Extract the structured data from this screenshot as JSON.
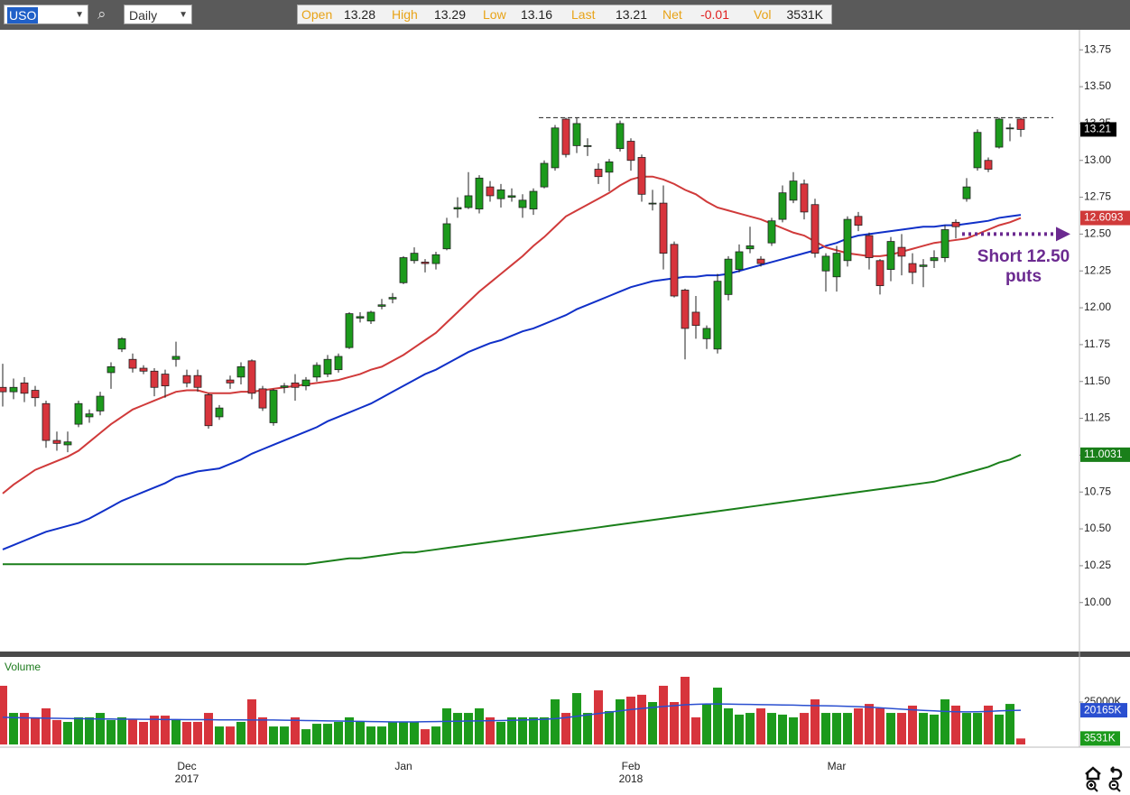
{
  "toolbar": {
    "symbol": "USO",
    "interval": "Daily",
    "open_label": "Open",
    "high_label": "High",
    "low_label": "Low",
    "last_label": "Last",
    "net_label": "Net",
    "net": "-0.01",
    "vol_label": "Vol"
  },
  "chart_data": {
    "type": "candlestick",
    "categories": [
      null,
      null,
      null,
      null,
      null,
      null,
      null,
      null,
      null,
      null,
      null,
      null,
      null,
      null,
      null,
      null,
      null,
      "Dec",
      null,
      null,
      null,
      null,
      null,
      null,
      null,
      null,
      null,
      null,
      null,
      null,
      null,
      null,
      null,
      null,
      null,
      null,
      null,
      "Jan",
      null,
      null,
      null,
      null,
      null,
      null,
      null,
      null,
      null,
      null,
      null,
      null,
      null,
      null,
      null,
      null,
      null,
      null,
      null,
      null,
      "Feb",
      null,
      null,
      null,
      null,
      null,
      null,
      null,
      null,
      null,
      null,
      null,
      null,
      null,
      null,
      null,
      null,
      null,
      null,
      "Mar",
      null,
      null,
      null,
      null,
      null,
      null,
      null,
      null,
      null,
      null,
      null,
      null,
      null,
      null,
      null,
      null,
      null
    ],
    "year_labels": [
      null,
      null,
      null,
      null,
      null,
      null,
      null,
      null,
      null,
      null,
      null,
      null,
      null,
      null,
      null,
      null,
      null,
      "2017",
      null,
      null,
      null,
      null,
      null,
      null,
      null,
      null,
      null,
      null,
      null,
      null,
      null,
      null,
      null,
      null,
      null,
      null,
      null,
      null,
      null,
      null,
      null,
      null,
      null,
      null,
      null,
      null,
      null,
      null,
      null,
      null,
      null,
      null,
      null,
      null,
      null,
      null,
      null,
      null,
      "2018",
      null,
      null,
      null,
      null,
      null,
      null,
      null,
      null,
      null,
      null,
      null,
      null,
      null,
      null,
      null,
      null,
      null,
      null,
      null,
      null,
      null,
      null,
      null,
      null,
      null,
      null,
      null,
      null,
      null,
      null,
      null,
      null,
      null,
      null,
      null,
      null
    ],
    "open": [
      11.46,
      11.43,
      11.49,
      11.44,
      11.35,
      11.1,
      11.07,
      11.21,
      11.26,
      11.3,
      11.56,
      11.72,
      11.65,
      11.59,
      11.57,
      11.55,
      11.65,
      11.54,
      11.54,
      11.41,
      11.26,
      11.51,
      11.53,
      11.64,
      11.45,
      11.22,
      11.46,
      11.49,
      11.47,
      11.53,
      11.55,
      11.58,
      11.73,
      11.93,
      11.91,
      12.01,
      12.06,
      12.17,
      12.32,
      12.31,
      12.3,
      12.4,
      12.67,
      12.68,
      12.67,
      12.82,
      12.74,
      12.75,
      12.68,
      12.67,
      12.82,
      12.95,
      13.28,
      13.1,
      13.1,
      12.94,
      12.92,
      13.08,
      13.13,
      13.02,
      12.71,
      12.71,
      12.43,
      12.12,
      11.97,
      11.79,
      11.72,
      12.09,
      12.26,
      12.4,
      12.33,
      12.44,
      12.6,
      12.73,
      12.84,
      12.7,
      12.25,
      12.21,
      12.32,
      12.62,
      12.49,
      12.32,
      12.26,
      12.41,
      12.3,
      12.28,
      12.32,
      12.34,
      12.58,
      12.74,
      12.95,
      13.0,
      13.09,
      13.22,
      13.28
    ],
    "high": [
      11.62,
      11.52,
      11.53,
      11.47,
      11.37,
      11.16,
      11.16,
      11.37,
      11.31,
      11.43,
      11.63,
      11.8,
      11.69,
      11.61,
      11.59,
      11.58,
      11.77,
      11.58,
      11.58,
      11.42,
      11.34,
      11.54,
      11.63,
      11.65,
      11.47,
      11.45,
      11.49,
      11.55,
      11.53,
      11.63,
      11.68,
      11.69,
      11.97,
      11.97,
      11.98,
      12.06,
      12.1,
      12.35,
      12.41,
      12.33,
      12.38,
      12.61,
      12.75,
      12.92,
      12.9,
      12.86,
      12.84,
      12.81,
      12.77,
      12.81,
      13.0,
      13.24,
      13.29,
      13.29,
      13.15,
      12.98,
      13.01,
      13.27,
      13.15,
      13.04,
      12.8,
      12.83,
      12.45,
      12.13,
      12.08,
      11.88,
      12.23,
      12.35,
      12.43,
      12.55,
      12.35,
      12.61,
      12.83,
      12.92,
      12.87,
      12.74,
      12.37,
      12.42,
      12.62,
      12.65,
      12.51,
      12.33,
      12.48,
      12.5,
      12.37,
      12.33,
      12.39,
      12.56,
      12.6,
      12.88,
      13.21,
      13.02,
      13.29,
      13.25,
      13.29
    ],
    "low": [
      11.33,
      11.38,
      11.36,
      11.33,
      11.05,
      11.03,
      11.02,
      11.19,
      11.22,
      11.27,
      11.45,
      11.7,
      11.56,
      11.55,
      11.4,
      11.39,
      11.6,
      11.46,
      11.43,
      11.18,
      11.24,
      11.45,
      11.48,
      11.38,
      11.3,
      11.2,
      11.42,
      11.37,
      11.44,
      11.5,
      11.53,
      11.56,
      11.72,
      11.9,
      11.89,
      11.99,
      12.03,
      12.16,
      12.3,
      12.24,
      12.26,
      12.39,
      12.61,
      12.67,
      12.64,
      12.72,
      12.68,
      12.72,
      12.61,
      12.63,
      12.81,
      12.93,
      13.02,
      13.05,
      13.03,
      12.84,
      12.79,
      13.06,
      12.93,
      12.72,
      12.66,
      12.26,
      12.07,
      11.65,
      11.79,
      11.72,
      11.69,
      12.05,
      12.24,
      12.37,
      12.28,
      12.42,
      12.58,
      12.71,
      12.6,
      12.34,
      12.11,
      12.11,
      12.28,
      12.52,
      12.26,
      12.09,
      12.18,
      12.22,
      12.16,
      12.14,
      12.27,
      12.31,
      12.47,
      12.72,
      12.93,
      12.92,
      13.08,
      13.13,
      13.16
    ],
    "close": [
      11.43,
      11.46,
      11.42,
      11.39,
      11.1,
      11.08,
      11.09,
      11.35,
      11.28,
      11.4,
      11.6,
      11.79,
      11.59,
      11.57,
      11.46,
      11.47,
      11.67,
      11.49,
      11.46,
      11.2,
      11.32,
      11.49,
      11.6,
      11.42,
      11.32,
      11.44,
      11.47,
      11.46,
      11.51,
      11.61,
      11.65,
      11.67,
      11.96,
      11.94,
      11.97,
      12.02,
      12.07,
      12.34,
      12.37,
      12.3,
      12.36,
      12.57,
      12.68,
      12.76,
      12.88,
      12.76,
      12.8,
      12.76,
      12.73,
      12.79,
      12.98,
      13.22,
      13.04,
      13.25,
      13.1,
      12.89,
      12.99,
      13.25,
      13.0,
      12.77,
      12.71,
      12.37,
      12.08,
      11.86,
      11.88,
      11.86,
      12.18,
      12.33,
      12.38,
      12.42,
      12.3,
      12.59,
      12.78,
      12.86,
      12.65,
      12.37,
      12.35,
      12.37,
      12.6,
      12.56,
      12.34,
      12.15,
      12.45,
      12.35,
      12.24,
      12.29,
      12.34,
      12.53,
      12.55,
      12.82,
      13.19,
      12.94,
      13.28,
      13.22,
      13.21
    ],
    "up_color": "#1c9a1c",
    "down_color": "#d7343c",
    "ylim": [
      9.68,
      13.88
    ],
    "yticks": [
      {
        "value": 10,
        "label": "10.00"
      },
      10.25,
      {
        "value": 10.5,
        "label": "10.50"
      },
      10.75,
      {
        "value": 11,
        "label": "11.00"
      },
      11.25,
      {
        "value": 11.5,
        "label": "11.50"
      },
      11.75,
      {
        "value": 12,
        "label": "12.00"
      },
      12.25,
      {
        "value": 12.5,
        "label": "12.50"
      },
      12.75,
      {
        "value": 13,
        "label": "13.00"
      },
      13.25,
      {
        "value": 13.5,
        "label": "13.50"
      },
      13.75
    ],
    "grid": false,
    "reference_line": 13.29,
    "moving_averages": [
      {
        "color": "#1a7f1a",
        "last_label": "11.0031",
        "values": [
          10.26,
          10.26,
          10.26,
          10.26,
          10.26,
          10.26,
          10.26,
          10.26,
          10.26,
          10.26,
          10.26,
          10.26,
          10.26,
          10.26,
          10.26,
          10.26,
          10.26,
          10.26,
          10.26,
          10.26,
          10.26,
          10.26,
          10.26,
          10.26,
          10.26,
          10.26,
          10.26,
          10.26,
          10.26,
          10.27,
          10.28,
          10.29,
          10.3,
          10.3,
          10.31,
          10.32,
          10.33,
          10.34,
          10.34,
          10.35,
          10.36,
          10.37,
          10.38,
          10.39,
          10.4,
          10.41,
          10.42,
          10.43,
          10.44,
          10.45,
          10.46,
          10.47,
          10.48,
          10.49,
          10.5,
          10.51,
          10.52,
          10.53,
          10.54,
          10.55,
          10.56,
          10.57,
          10.58,
          10.59,
          10.6,
          10.61,
          10.62,
          10.63,
          10.64,
          10.65,
          10.66,
          10.67,
          10.68,
          10.69,
          10.7,
          10.71,
          10.72,
          10.73,
          10.74,
          10.75,
          10.76,
          10.77,
          10.78,
          10.79,
          10.8,
          10.81,
          10.82,
          10.84,
          10.86,
          10.88,
          10.9,
          10.92,
          10.95,
          10.97,
          11.0031
        ]
      },
      {
        "color": "#1030c8",
        "values": [
          10.36,
          10.39,
          10.42,
          10.45,
          10.48,
          10.5,
          10.52,
          10.54,
          10.57,
          10.61,
          10.65,
          10.69,
          10.72,
          10.75,
          10.78,
          10.81,
          10.85,
          10.87,
          10.89,
          10.9,
          10.91,
          10.94,
          10.97,
          11.01,
          11.04,
          11.07,
          11.1,
          11.13,
          11.16,
          11.19,
          11.23,
          11.26,
          11.29,
          11.32,
          11.35,
          11.39,
          11.43,
          11.47,
          11.51,
          11.55,
          11.58,
          11.62,
          11.66,
          11.7,
          11.73,
          11.76,
          11.78,
          11.81,
          11.84,
          11.86,
          11.89,
          11.92,
          11.95,
          11.99,
          12.02,
          12.05,
          12.08,
          12.11,
          12.14,
          12.16,
          12.18,
          12.19,
          12.2,
          12.21,
          12.21,
          12.22,
          12.22,
          12.23,
          12.25,
          12.27,
          12.29,
          12.31,
          12.33,
          12.35,
          12.37,
          12.39,
          12.42,
          12.44,
          12.47,
          12.49,
          12.5,
          12.51,
          12.52,
          12.53,
          12.54,
          12.55,
          12.55,
          12.56,
          12.56,
          12.57,
          12.58,
          12.59,
          12.61,
          12.62,
          12.63
        ]
      },
      {
        "color": "#d03a3a",
        "last_label": "12.6093",
        "values": [
          10.74,
          10.8,
          10.85,
          10.9,
          10.93,
          10.96,
          10.99,
          11.03,
          11.09,
          11.15,
          11.21,
          11.26,
          11.31,
          11.34,
          11.37,
          11.4,
          11.43,
          11.44,
          11.44,
          11.42,
          11.42,
          11.42,
          11.43,
          11.43,
          11.44,
          11.45,
          11.46,
          11.47,
          11.48,
          11.49,
          11.5,
          11.51,
          11.53,
          11.55,
          11.58,
          11.6,
          11.64,
          11.68,
          11.73,
          11.78,
          11.83,
          11.9,
          11.97,
          12.04,
          12.11,
          12.17,
          12.23,
          12.29,
          12.35,
          12.42,
          12.48,
          12.55,
          12.62,
          12.66,
          12.7,
          12.74,
          12.78,
          12.83,
          12.87,
          12.89,
          12.89,
          12.87,
          12.84,
          12.8,
          12.77,
          12.72,
          12.68,
          12.66,
          12.64,
          12.62,
          12.6,
          12.57,
          12.54,
          12.51,
          12.49,
          12.45,
          12.41,
          12.39,
          12.37,
          12.36,
          12.35,
          12.35,
          12.36,
          12.38,
          12.4,
          12.42,
          12.44,
          12.45,
          12.46,
          12.47,
          12.5,
          12.53,
          12.56,
          12.58,
          12.6093
        ]
      }
    ],
    "annotation": {
      "lines": [
        "Short 12.50",
        "puts"
      ],
      "value": 12.5,
      "color": "#6b2a90"
    },
    "volume": {
      "label": "Volume",
      "ylim": [
        0,
        51600
      ],
      "yticks": [
        {
          "value": 25000,
          "label": "25000K"
        }
      ],
      "last_label": "3531K",
      "values": [
        34600,
        18600,
        18600,
        16000,
        21300,
        14400,
        13300,
        16000,
        16000,
        18600,
        14400,
        16000,
        14900,
        13300,
        17000,
        17000,
        14900,
        13300,
        13300,
        18600,
        10600,
        10600,
        13300,
        26600,
        16000,
        10600,
        10600,
        16000,
        9000,
        12200,
        12200,
        13300,
        16000,
        13300,
        10600,
        10600,
        13300,
        13300,
        13300,
        9000,
        10600,
        21300,
        18600,
        18600,
        21300,
        16000,
        13300,
        16000,
        16000,
        16000,
        16000,
        26600,
        18600,
        30300,
        18600,
        31900,
        19700,
        26600,
        28200,
        29300,
        25000,
        34600,
        25000,
        39900,
        16000,
        23900,
        33500,
        21300,
        17600,
        18600,
        21300,
        18600,
        17600,
        16000,
        18600,
        26600,
        18600,
        18600,
        18600,
        21300,
        23900,
        21300,
        18600,
        18600,
        22900,
        18600,
        17600,
        26600,
        22900,
        18600,
        18600,
        22900,
        17600,
        23900,
        3531
      ],
      "ma": {
        "color": "#2a4fd0",
        "last_label": "20165K",
        "values": [
          16000,
          15800,
          15700,
          15600,
          15500,
          15400,
          15300,
          15200,
          15100,
          15000,
          15000,
          14900,
          14900,
          14800,
          14800,
          14700,
          14700,
          14600,
          14600,
          14600,
          14500,
          14500,
          14500,
          14400,
          14400,
          14400,
          14300,
          14200,
          14100,
          14000,
          13900,
          13800,
          13700,
          13600,
          13500,
          13400,
          13300,
          13300,
          13300,
          13400,
          13500,
          13600,
          13700,
          13800,
          13900,
          14000,
          14100,
          14200,
          14400,
          14600,
          14800,
          15200,
          15800,
          16600,
          17400,
          18200,
          19000,
          19800,
          20600,
          21200,
          21800,
          22400,
          22900,
          23400,
          23700,
          23900,
          23900,
          23800,
          23700,
          23600,
          23500,
          23400,
          23300,
          23200,
          23000,
          22900,
          22800,
          22700,
          22500,
          22300,
          22000,
          21600,
          21200,
          20800,
          20400,
          20100,
          19800,
          19500,
          19300,
          19200,
          19300,
          19500,
          19800,
          20000,
          20165
        ]
      }
    }
  }
}
